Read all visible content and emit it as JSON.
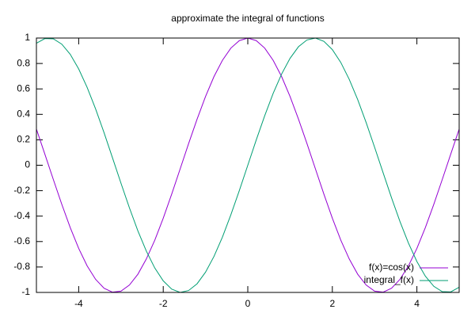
{
  "chart_data": {
    "type": "line",
    "title": "approximate the integral of functions",
    "x": [
      -5,
      -4.8,
      -4.6,
      -4.4,
      -4.2,
      -4,
      -3.8,
      -3.6,
      -3.4,
      -3.2,
      -3,
      -2.8,
      -2.6,
      -2.4,
      -2.2,
      -2,
      -1.8,
      -1.6,
      -1.4,
      -1.2,
      -1,
      -0.8,
      -0.6,
      -0.4,
      -0.2,
      0,
      0.2,
      0.4,
      0.6,
      0.8,
      1,
      1.2,
      1.4,
      1.6,
      1.8,
      2,
      2.2,
      2.4,
      2.6,
      2.8,
      3,
      3.2,
      3.4,
      3.6,
      3.8,
      4,
      4.2,
      4.4,
      4.6,
      4.8,
      5
    ],
    "series": [
      {
        "name": "f(x)=cos(x)",
        "color": "#9400d3",
        "values": [
          0.284,
          0.087,
          -0.112,
          -0.307,
          -0.49,
          -0.654,
          -0.791,
          -0.897,
          -0.967,
          -0.998,
          -0.99,
          -0.942,
          -0.857,
          -0.737,
          -0.589,
          -0.416,
          -0.227,
          -0.029,
          0.17,
          0.362,
          0.54,
          0.697,
          0.825,
          0.921,
          0.98,
          1,
          0.98,
          0.921,
          0.825,
          0.697,
          0.54,
          0.362,
          0.17,
          -0.029,
          -0.227,
          -0.416,
          -0.589,
          -0.737,
          -0.857,
          -0.942,
          -0.99,
          -0.998,
          -0.967,
          -0.897,
          -0.791,
          -0.654,
          -0.49,
          -0.307,
          -0.112,
          0.087,
          0.284
        ]
      },
      {
        "name": "integral_f(x)",
        "color": "#009e73",
        "values": [
          0.959,
          0.996,
          0.994,
          0.952,
          0.872,
          0.757,
          0.612,
          0.443,
          0.256,
          0.058,
          -0.141,
          -0.335,
          -0.516,
          -0.675,
          -0.808,
          -0.909,
          -0.974,
          -1,
          -0.985,
          -0.932,
          -0.841,
          -0.717,
          -0.565,
          -0.389,
          -0.199,
          0,
          0.199,
          0.389,
          0.565,
          0.717,
          0.841,
          0.932,
          0.985,
          1,
          0.974,
          0.909,
          0.808,
          0.675,
          0.516,
          0.335,
          0.141,
          -0.058,
          -0.256,
          -0.443,
          -0.612,
          -0.757,
          -0.872,
          -0.952,
          -0.994,
          -0.996,
          -0.959
        ]
      }
    ],
    "xlim": [
      -5,
      5
    ],
    "xticks": [
      -4,
      -2,
      0,
      2,
      4
    ],
    "ylim": [
      -1,
      1
    ],
    "yticks": [
      -1,
      -0.8,
      -0.6,
      -0.4,
      -0.2,
      0,
      0.2,
      0.4,
      0.6,
      0.8,
      1
    ],
    "legend": "bottom right"
  }
}
